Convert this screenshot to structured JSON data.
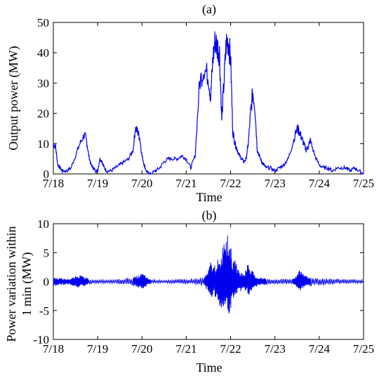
{
  "chart_data": [
    {
      "type": "line",
      "title": "(a)",
      "xlabel": "Time",
      "ylabel": "Output power (MW)",
      "x_tick_labels": [
        "7/18",
        "7/19",
        "7/20",
        "7/21",
        "7/22",
        "7/23",
        "7/24",
        "7/25"
      ],
      "xlim": [
        0,
        7
      ],
      "ylim": [
        0,
        50
      ],
      "y_ticks": [
        "0",
        "10",
        "20",
        "30",
        "40",
        "50"
      ],
      "series_color": "#0000ee",
      "x": [
        0,
        0.05,
        0.1,
        0.15,
        0.2,
        0.3,
        0.4,
        0.5,
        0.6,
        0.7,
        0.75,
        0.8,
        0.85,
        0.9,
        0.95,
        1.0,
        1.05,
        1.1,
        1.15,
        1.2,
        1.3,
        1.4,
        1.5,
        1.6,
        1.7,
        1.8,
        1.85,
        1.9,
        1.95,
        2.0,
        2.05,
        2.1,
        2.15,
        2.2,
        2.3,
        2.4,
        2.5,
        2.6,
        2.7,
        2.8,
        2.9,
        3.0,
        3.1,
        3.2,
        3.3,
        3.4,
        3.5,
        3.55,
        3.6,
        3.65,
        3.7,
        3.75,
        3.8,
        3.85,
        3.9,
        3.95,
        4.0,
        4.05,
        4.1,
        4.15,
        4.2,
        4.25,
        4.3,
        4.35,
        4.4,
        4.45,
        4.5,
        4.55,
        4.6,
        4.65,
        4.7,
        4.75,
        4.8,
        4.9,
        5.0,
        5.1,
        5.2,
        5.3,
        5.4,
        5.5,
        5.55,
        5.6,
        5.65,
        5.7,
        5.75,
        5.8,
        5.9,
        6.0,
        6.1,
        6.2,
        6.3,
        6.4,
        6.5,
        6.6,
        6.7,
        6.8,
        6.9,
        7.0
      ],
      "y": [
        10,
        9,
        3,
        2,
        1,
        1,
        2,
        6,
        10,
        13,
        11,
        6,
        3,
        2,
        1,
        1,
        5,
        4,
        2,
        1,
        1,
        2,
        3,
        4,
        5,
        8,
        15,
        14,
        12,
        6,
        3,
        1,
        0,
        0,
        1,
        2,
        4,
        5,
        5,
        5,
        6,
        5,
        2,
        6,
        30,
        35,
        32,
        25,
        38,
        44,
        42,
        40,
        18,
        30,
        43,
        44,
        38,
        14,
        10,
        8,
        6,
        5,
        4,
        5,
        10,
        20,
        27,
        22,
        8,
        6,
        4,
        3,
        2,
        2,
        1,
        2,
        3,
        5,
        10,
        15,
        14,
        12,
        10,
        8,
        9,
        11,
        6,
        3,
        2,
        2,
        1,
        2,
        2,
        2,
        1,
        2,
        1,
        0
      ],
      "x_units": "days after 7/18",
      "y_units": "MW"
    },
    {
      "type": "line",
      "title": "(b)",
      "xlabel": "Time",
      "ylabel": "Power variation within 1 min (MW)",
      "x_tick_labels": [
        "7/18",
        "7/19",
        "7/20",
        "7/21",
        "7/22",
        "7/23",
        "7/24",
        "7/25"
      ],
      "xlim": [
        0,
        7
      ],
      "ylim": [
        -10,
        10
      ],
      "y_ticks": [
        "-10",
        "-5",
        "0",
        "5",
        "10"
      ],
      "series_color": "#0000ee",
      "x": [
        0,
        0.1,
        0.2,
        0.3,
        0.4,
        0.5,
        0.55,
        0.6,
        0.7,
        0.8,
        1.0,
        1.2,
        1.4,
        1.6,
        1.8,
        1.9,
        2.0,
        2.05,
        2.1,
        2.2,
        2.4,
        2.6,
        2.8,
        3.0,
        3.2,
        3.4,
        3.5,
        3.55,
        3.6,
        3.7,
        3.75,
        3.8,
        3.85,
        3.9,
        3.95,
        4.0,
        4.05,
        4.1,
        4.15,
        4.2,
        4.3,
        4.4,
        4.45,
        4.5,
        4.55,
        4.6,
        4.7,
        4.8,
        5.0,
        5.2,
        5.4,
        5.5,
        5.55,
        5.6,
        5.7,
        5.8,
        6.0,
        6.2,
        6.4,
        6.6,
        6.8,
        7.0
      ],
      "y_upper": [
        0.8,
        0.7,
        0.6,
        0.5,
        0.6,
        0.9,
        1.0,
        1.2,
        0.8,
        0.5,
        0.3,
        0.3,
        0.4,
        0.6,
        0.8,
        1.0,
        1.5,
        1.2,
        0.8,
        0.4,
        0.3,
        0.3,
        0.4,
        0.5,
        0.6,
        0.8,
        2.0,
        3.5,
        2.5,
        4.0,
        3.0,
        5.0,
        8.0,
        9.5,
        7.0,
        6.5,
        3.0,
        4.0,
        2.5,
        1.8,
        1.5,
        3.5,
        2.0,
        1.8,
        1.0,
        0.8,
        0.7,
        0.6,
        0.5,
        0.5,
        0.6,
        1.0,
        2.5,
        1.5,
        1.2,
        0.8,
        0.7,
        0.6,
        0.5,
        0.5,
        0.4,
        0.3
      ],
      "y_lower": [
        -0.8,
        -0.7,
        -0.6,
        -0.5,
        -0.6,
        -0.9,
        -1.0,
        -1.1,
        -0.8,
        -0.5,
        -0.3,
        -0.3,
        -0.4,
        -0.6,
        -0.8,
        -1.0,
        -1.4,
        -1.2,
        -0.8,
        -0.4,
        -0.3,
        -0.3,
        -0.4,
        -0.5,
        -0.6,
        -0.8,
        -1.8,
        -3.0,
        -2.5,
        -3.5,
        -4.0,
        -5.0,
        -4.5,
        -3.5,
        -7.5,
        -5.0,
        -3.0,
        -2.5,
        -2.0,
        -1.8,
        -1.5,
        -2.5,
        -1.8,
        -1.5,
        -1.0,
        -0.8,
        -0.7,
        -0.6,
        -0.5,
        -0.5,
        -0.6,
        -1.0,
        -1.8,
        -1.4,
        -1.0,
        -0.8,
        -0.7,
        -0.6,
        -0.5,
        -0.5,
        -0.4,
        -0.3
      ],
      "x_units": "days after 7/18",
      "y_units": "MW"
    }
  ]
}
